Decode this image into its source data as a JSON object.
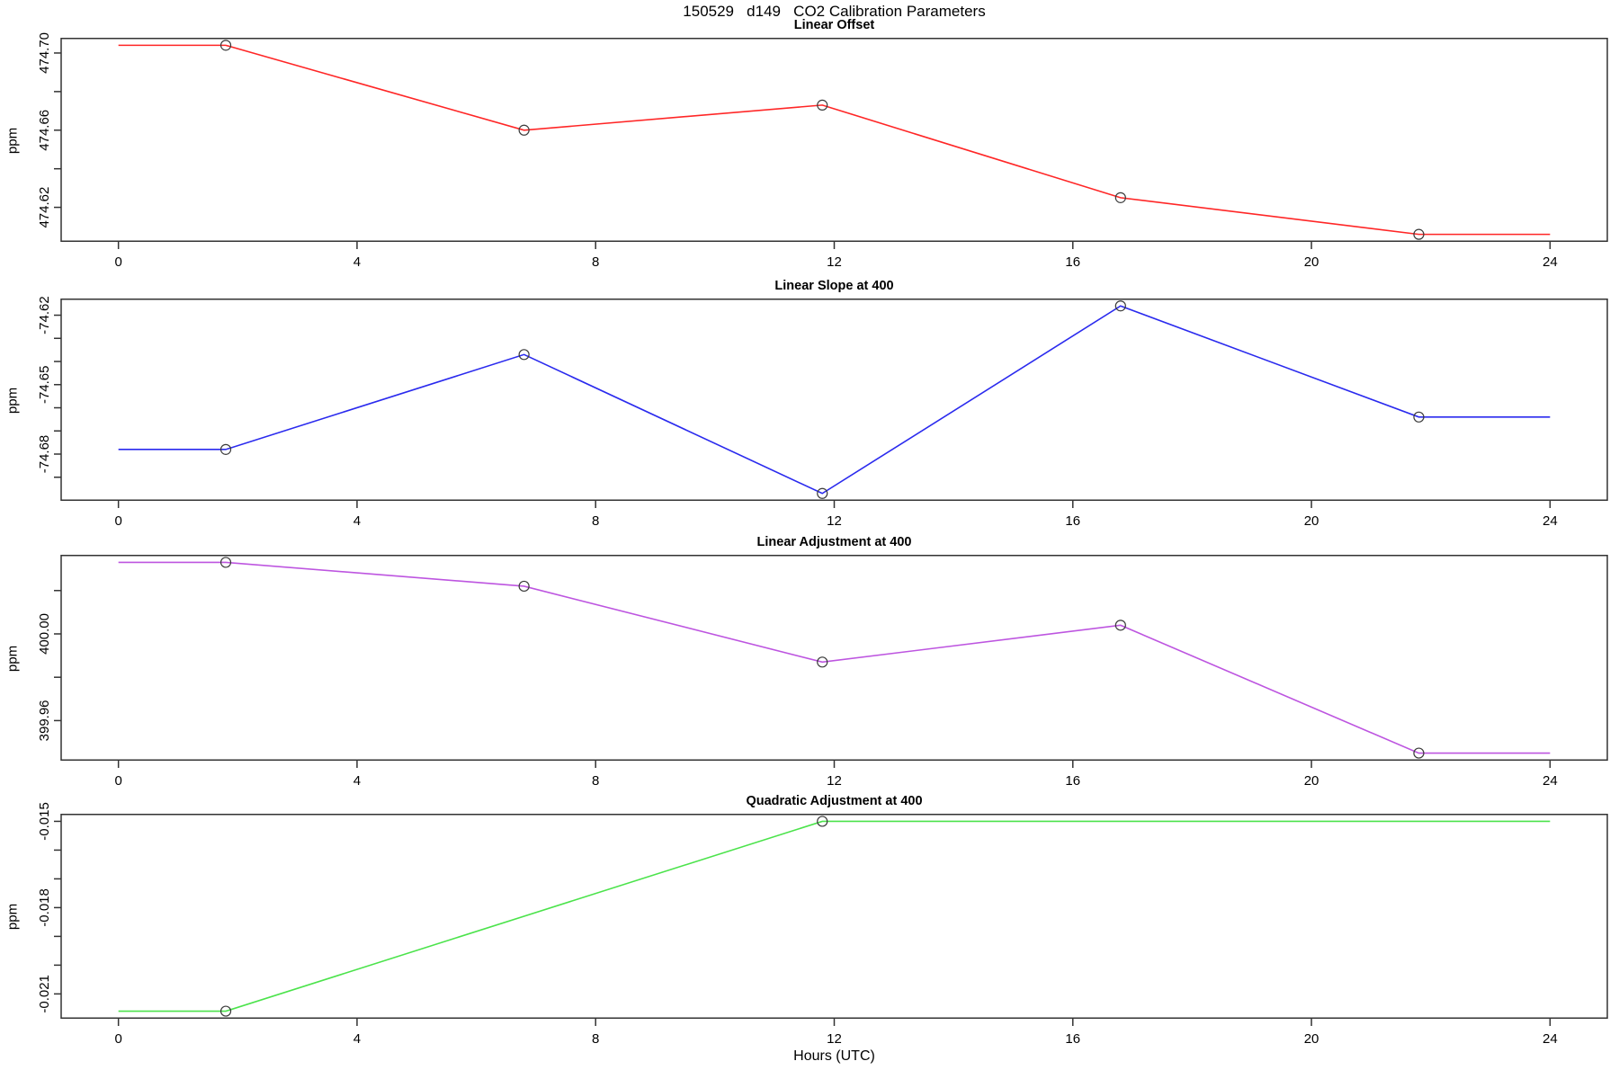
{
  "page_title": "150529   d149   CO2 Calibration Parameters",
  "xlabel": "Hours (UTC)",
  "axis_color": "#333333",
  "marker_color": "#3a3a3a",
  "chart_data": [
    {
      "type": "line",
      "title": "Linear Offset",
      "ylabel": "ppm",
      "color": "#ff2626",
      "x": [
        1.8,
        6.8,
        11.8,
        16.8,
        21.8
      ],
      "y": [
        474.704,
        474.66,
        474.673,
        474.625,
        474.606
      ],
      "extend_flat_to": [
        0,
        24
      ],
      "xlim": [
        -0.96,
        24.96
      ],
      "ylim": [
        474.6021,
        474.7079
      ],
      "xticks": [
        0,
        4,
        8,
        12,
        16,
        20,
        24
      ],
      "yticks": [
        {
          "v": 474.62,
          "label": "474.62"
        },
        {
          "v": 474.64,
          "label": ""
        },
        {
          "v": 474.66,
          "label": "474.66"
        },
        {
          "v": 474.68,
          "label": ""
        },
        {
          "v": 474.7,
          "label": "474.70"
        }
      ],
      "legend": "none",
      "grid": false
    },
    {
      "type": "line",
      "title": "Linear Slope at 400",
      "ylabel": "ppm",
      "color": "#2a2aee",
      "x": [
        1.8,
        6.8,
        11.8,
        16.8,
        21.8
      ],
      "y": [
        -74.678,
        -74.637,
        -74.697,
        -74.616,
        -74.664
      ],
      "extend_flat_to": [
        0,
        24
      ],
      "xlim": [
        -0.96,
        24.96
      ],
      "ylim": [
        -74.7002,
        -74.6128
      ],
      "xticks": [
        0,
        4,
        8,
        12,
        16,
        20,
        24
      ],
      "yticks": [
        {
          "v": -74.69,
          "label": ""
        },
        {
          "v": -74.68,
          "label": "-74.68"
        },
        {
          "v": -74.67,
          "label": ""
        },
        {
          "v": -74.66,
          "label": ""
        },
        {
          "v": -74.65,
          "label": "-74.65"
        },
        {
          "v": -74.64,
          "label": ""
        },
        {
          "v": -74.63,
          "label": ""
        },
        {
          "v": -74.62,
          "label": "-74.62"
        }
      ],
      "legend": "none",
      "grid": false
    },
    {
      "type": "line",
      "title": "Linear Adjustment at 400",
      "ylabel": "ppm",
      "color": "#bd55e0",
      "x": [
        1.8,
        6.8,
        11.8,
        16.8,
        21.8
      ],
      "y": [
        400.033,
        400.022,
        399.987,
        400.004,
        399.945
      ],
      "extend_flat_to": [
        0,
        24
      ],
      "xlim": [
        -0.96,
        24.96
      ],
      "ylim": [
        399.9415,
        400.0365
      ],
      "xticks": [
        0,
        4,
        8,
        12,
        16,
        20,
        24
      ],
      "yticks": [
        {
          "v": 399.96,
          "label": "399.96"
        },
        {
          "v": 399.98,
          "label": ""
        },
        {
          "v": 400.0,
          "label": "400.00"
        },
        {
          "v": 400.02,
          "label": ""
        }
      ],
      "legend": "none",
      "grid": false
    },
    {
      "type": "line",
      "title": "Quadratic Adjustment at 400",
      "ylabel": "ppm",
      "color": "#4be34b",
      "x": [
        1.8,
        11.8
      ],
      "y": [
        -0.0216,
        -0.015
      ],
      "extend_flat_to": [
        0,
        24
      ],
      "xlim": [
        -0.96,
        24.96
      ],
      "ylim": [
        -0.021864,
        -0.014736
      ],
      "xticks": [
        0,
        4,
        8,
        12,
        16,
        20,
        24
      ],
      "yticks": [
        {
          "v": -0.021,
          "label": "-0.021"
        },
        {
          "v": -0.02,
          "label": ""
        },
        {
          "v": -0.019,
          "label": ""
        },
        {
          "v": -0.018,
          "label": "-0.018"
        },
        {
          "v": -0.017,
          "label": ""
        },
        {
          "v": -0.016,
          "label": ""
        },
        {
          "v": -0.015,
          "label": "-0.015"
        }
      ],
      "legend": "none",
      "grid": false
    }
  ]
}
